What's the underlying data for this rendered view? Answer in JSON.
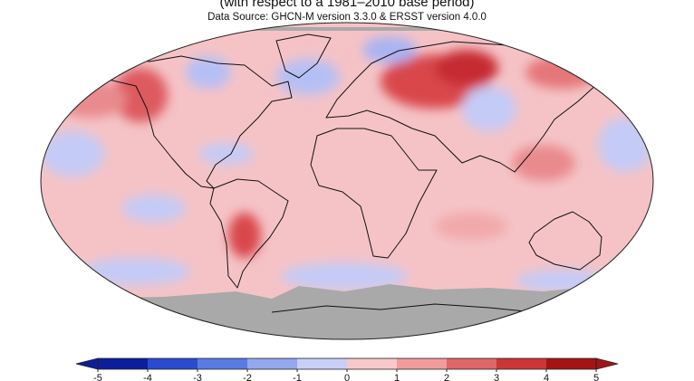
{
  "header": {
    "title": "(with respect to a 1981–2010 base period)",
    "source": "Data Source: GHCN-M version 3.3.0 & ERSST version 4.0.0"
  },
  "colorbar": {
    "ticks": [
      -5,
      -4,
      -3,
      -2,
      -1,
      0,
      1,
      2,
      3,
      4,
      5
    ],
    "colors": [
      "#0b1e9c",
      "#2a4bd0",
      "#5a7be2",
      "#93a8ef",
      "#c9d0f8",
      "#f8c9ca",
      "#f09c9d",
      "#e06667",
      "#cc3636",
      "#a51414"
    ]
  }
}
